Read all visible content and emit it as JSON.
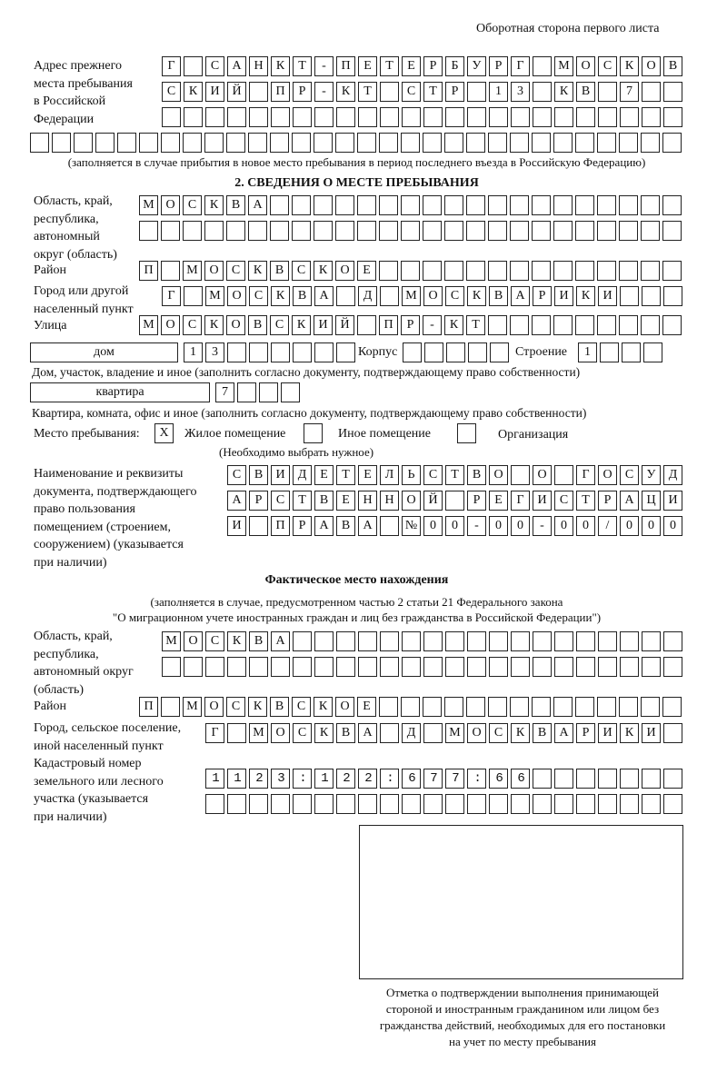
{
  "page_header": "Оборотная сторона первого листа",
  "previous_address": {
    "label": [
      "Адрес прежнего",
      "места пребывания",
      "в Российской",
      "Федерации"
    ],
    "rows": [
      "Г САНКТ-ПЕТЕРБУРГ МОСКОВ",
      "СКИЙ ПР-КТ СТР 13 КВ 7  ",
      "",
      ""
    ],
    "note": "(заполняется в случае прибытия в новое место пребывания в период последнего въезда в Российскую Федерацию)"
  },
  "section2": {
    "title": "2. СВЕДЕНИЯ О МЕСТЕ ПРЕБЫВАНИЯ",
    "region_label": [
      "Область, край,",
      "республика,",
      "автономный",
      "округ (область)"
    ],
    "region_rows": [
      "МОСКВА",
      ""
    ],
    "district_label": "Район",
    "district": "П МОСКВСКОЕ",
    "city_label": [
      "Город или другой",
      "населенный пункт"
    ],
    "city": "Г МОСКВА Д МОСКВАРИКИ",
    "street_label": "Улица",
    "street": "МОСКОВСКИЙ ПР-КТ",
    "house_type": "дом",
    "house_number": "13",
    "korpus_label": "Корпус",
    "korpus": "",
    "building_label": "Строение",
    "building": "1",
    "house_caption": "Дом, участок, владение и иное (заполнить согласно документу, подтверждающему право собственности)",
    "apartment_type": "квартира",
    "apartment_number": "7",
    "apartment_caption": "Квартира, комната, офис и иное (заполнить согласно документу, подтверждающему право собственности)",
    "stay_place_label": "Место пребывания:",
    "stay_options": [
      {
        "label": "Жилое помещение",
        "mark": "X"
      },
      {
        "label": "Иное помещение",
        "mark": ""
      },
      {
        "label": "Организация",
        "mark": ""
      }
    ],
    "stay_hint": "(Необходимо выбрать нужное)",
    "doc_label": [
      "Наименование и реквизиты",
      "документа, подтверждающего",
      "право пользования",
      "помещением (строением,",
      "сооружением) (указывается",
      "при наличии)"
    ],
    "doc_rows": [
      "СВИДЕТЕЛЬСТВО О ГОСУД",
      "АРСТВЕННОЙ РЕГИСТРАЦИ",
      "И ПРАВА №00-00-00/000"
    ]
  },
  "actual": {
    "title": "Фактическое место нахождения",
    "subtitle": [
      "(заполняется в случае, предусмотренном частью 2 статьи 21 Федерального закона",
      "\"О миграционном учете иностранных граждан и лиц без гражданства в Российской Федерации\")"
    ],
    "region_label": [
      "Область, край,",
      "республика,",
      "автономный округ",
      "(область)"
    ],
    "region_rows": [
      "МОСКВА",
      ""
    ],
    "district_label": "Район",
    "district": "П МОСКВСКОЕ",
    "city_label": [
      "Город, сельское поселение,",
      "иной населенный пункт"
    ],
    "city": "Г МОСКВА Д МОСКВАРИКИ",
    "cadastre_label": [
      "Кадастровый номер",
      "земельного или лесного",
      "участка (указывается",
      "при наличии)"
    ],
    "cadastre_rows": [
      "1123:122:677:66",
      ""
    ]
  },
  "stamp_caption": [
    "Отметка о подтверждении выполнения принимающей",
    "стороной и иностранным гражданином или лицом без",
    "гражданства действий, необходимых для его постановки",
    "на учет по месту пребывания"
  ]
}
